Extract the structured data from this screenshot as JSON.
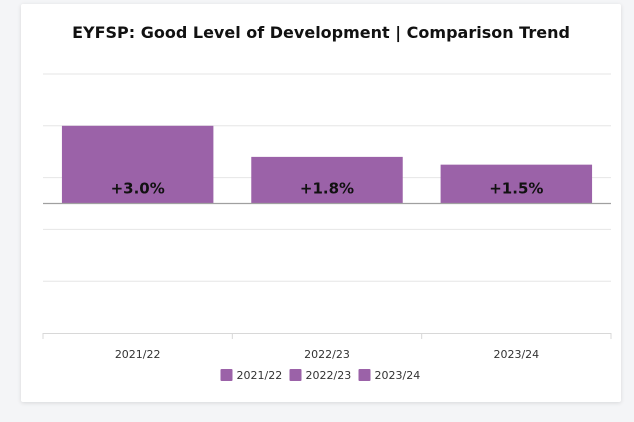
{
  "chart_data": {
    "type": "bar",
    "title": "EYFSP: Good Level of Development | Comparison Trend",
    "xlabel": "",
    "ylabel": "",
    "categories": [
      "2021/22",
      "2022/23",
      "2023/24"
    ],
    "values": [
      3.0,
      1.8,
      1.5
    ],
    "data_labels": [
      "+3.0%",
      "+1.8%",
      "+1.5%"
    ],
    "ylim": [
      -5,
      5
    ],
    "grid": true,
    "legend": {
      "position": "bottom",
      "entries": [
        "2021/22",
        "2022/23",
        "2023/24"
      ]
    },
    "colors": {
      "bar": "#9b62a8",
      "grid": "#e6e6e6",
      "zero_line": "#a0a0a0",
      "axis": "#d8d8d8"
    }
  }
}
